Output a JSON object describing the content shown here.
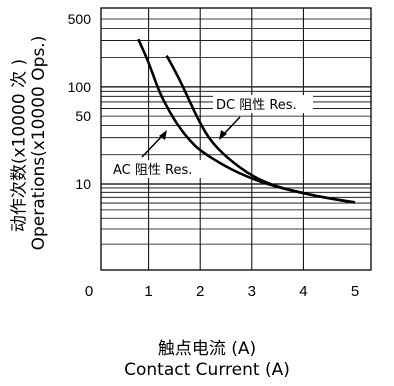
{
  "chart_data": {
    "type": "line",
    "ylabel_cn": "动作次数(x10000 次 )",
    "ylabel_en": "Operations(x10000 Ops.)",
    "xlabel_cn": "触点电流 (A)",
    "xlabel_en": "Contact Current (A)",
    "x_ticks": [
      "0",
      "1",
      "2",
      "3",
      "4",
      "5"
    ],
    "y_ticks": [
      "500",
      "100",
      "50",
      "10"
    ],
    "xlim": [
      0,
      5.5
    ],
    "ylim": [
      1,
      500
    ],
    "y_scale": "log",
    "grid": true,
    "series": [
      {
        "name": "AC 阻性 Res.",
        "x": [
          0.8,
          1.0,
          1.2,
          1.4,
          1.6,
          1.8,
          2.0,
          2.5,
          3.0,
          3.5,
          4.0,
          4.5,
          5.0
        ],
        "y": [
          310,
          180,
          90,
          56,
          38,
          28,
          22,
          15,
          11.3,
          9.2,
          7.8,
          6.8,
          6.1
        ]
      },
      {
        "name": "DC 阻性 Res.",
        "x": [
          1.35,
          1.6,
          1.8,
          2.0,
          2.2,
          2.5,
          3.0,
          3.5,
          4.0,
          4.5,
          5.0
        ],
        "y": [
          210,
          120,
          70,
          42,
          28,
          19,
          12,
          9.2,
          7.8,
          6.8,
          6.1
        ]
      }
    ]
  }
}
